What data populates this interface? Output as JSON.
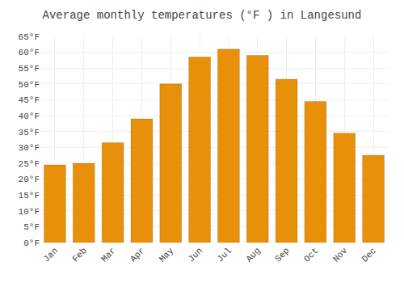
{
  "chart_data": {
    "type": "bar",
    "title": "Average monthly temperatures (°F ) in Langesund",
    "categories": [
      "Jan",
      "Feb",
      "Mar",
      "Apr",
      "May",
      "Jun",
      "Jul",
      "Aug",
      "Sep",
      "Oct",
      "Nov",
      "Dec"
    ],
    "values": [
      24.5,
      25.0,
      31.5,
      39.0,
      50.0,
      58.5,
      61.0,
      59.0,
      51.5,
      44.5,
      34.5,
      27.5
    ],
    "color": "#E8900A",
    "ylim": [
      0,
      65
    ],
    "yticks": [
      {
        "value": 0,
        "label": "0°F"
      },
      {
        "value": 5,
        "label": "5°F"
      },
      {
        "value": 10,
        "label": "10°F"
      },
      {
        "value": 15,
        "label": "15°F"
      },
      {
        "value": 20,
        "label": "20°F"
      },
      {
        "value": 25,
        "label": "25°F"
      },
      {
        "value": 30,
        "label": "30°F"
      },
      {
        "value": 35,
        "label": "35°F"
      },
      {
        "value": 40,
        "label": "40°F"
      },
      {
        "value": 45,
        "label": "45°F"
      },
      {
        "value": 50,
        "label": "50°F"
      },
      {
        "value": 55,
        "label": "55°F"
      },
      {
        "value": 60,
        "label": "60°F"
      },
      {
        "value": 65,
        "label": "65°F"
      }
    ],
    "grid": true
  }
}
